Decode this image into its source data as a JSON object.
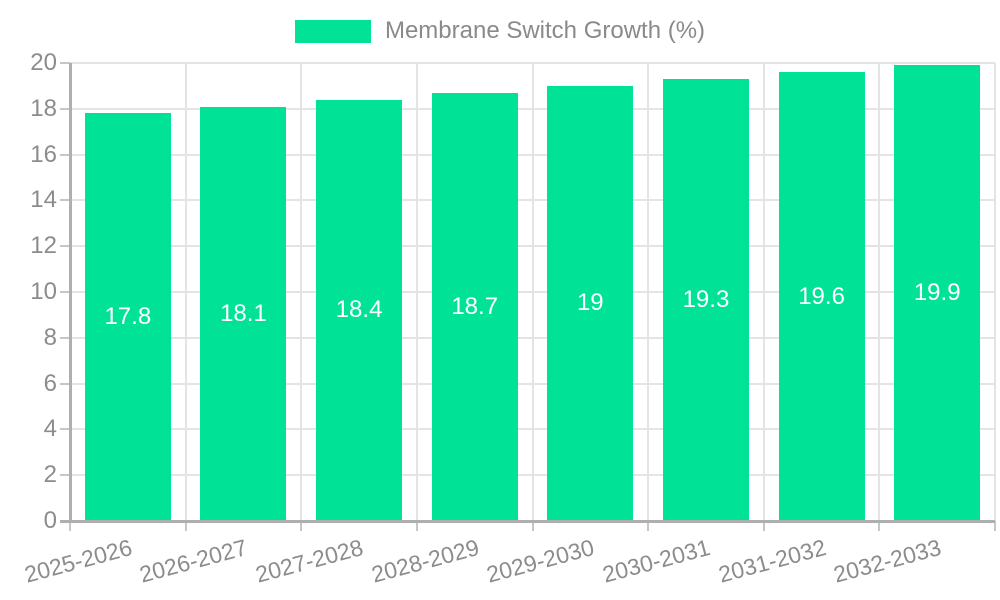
{
  "chart_data": {
    "type": "bar",
    "title": "",
    "categories": [
      "2025-2026",
      "2026-2027",
      "2027-2028",
      "2028-2029",
      "2029-2030",
      "2030-2031",
      "2031-2032",
      "2032-2033"
    ],
    "series": [
      {
        "name": "Membrane Switch Growth (%)",
        "values": [
          17.8,
          18.1,
          18.4,
          18.7,
          19,
          19.3,
          19.6,
          19.9
        ],
        "labels": [
          "17.8",
          "18.1",
          "18.4",
          "18.7",
          "19",
          "19.3",
          "19.6",
          "19.9"
        ]
      }
    ],
    "xlabel": "",
    "ylabel": "",
    "ylim": [
      0,
      20
    ],
    "yticks": [
      0,
      2,
      4,
      6,
      8,
      10,
      12,
      14,
      16,
      18,
      20
    ],
    "grid": true,
    "legend_position": "top-center",
    "x_label_rotation_deg": -15,
    "value_label_position": "inside-center"
  },
  "colors": {
    "bar": "#00E396",
    "grid_line": "#E4E4E4",
    "axis_line": "#AFAFAF",
    "tick": "#C6C6C6",
    "axis_text": "#8C8C8C",
    "value_label_text": "#FFFFFF",
    "legend_text": "#8A8A8A"
  }
}
